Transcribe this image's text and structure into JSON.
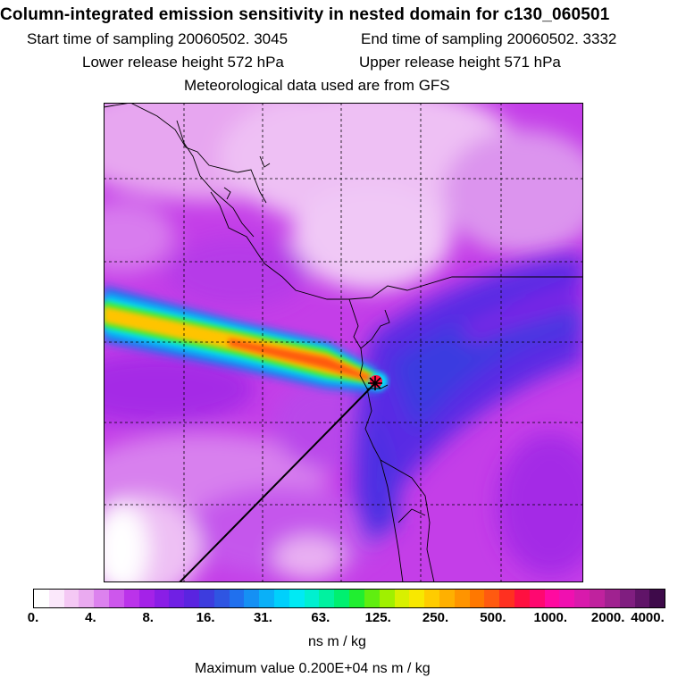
{
  "header": {
    "title": "Column-integrated emission sensitivity in nested domain for c130_060501",
    "start_time": "Start time of sampling 20060502.  3045",
    "end_time": "End time of sampling 20060502.  3332",
    "lower_height": "Lower release height  572 hPa",
    "upper_height": "Upper release height  571 hPa",
    "met_data": "Meteorological data used are from GFS"
  },
  "colorbar": {
    "ticks": [
      "0.",
      "4.",
      "8.",
      "16.",
      "31.",
      "63.",
      "125.",
      "250.",
      "500.",
      "1000.",
      "2000.",
      "4000."
    ],
    "colors": [
      "#ffffff",
      "#fbe8fb",
      "#f4c8f4",
      "#eaaaf0",
      "#dc82ee",
      "#cd57ec",
      "#bb33ea",
      "#a422e8",
      "#8a1ee6",
      "#7020e4",
      "#5a24e0",
      "#3d3cde",
      "#2f55e2",
      "#2070ee",
      "#1590f4",
      "#0ab0f8",
      "#00d0fc",
      "#00eaf4",
      "#00f0d0",
      "#00f2a0",
      "#00f070",
      "#20ee30",
      "#60ee10",
      "#a0f000",
      "#d8f000",
      "#f8e800",
      "#ffcc00",
      "#ffb000",
      "#ff9400",
      "#ff7800",
      "#ff5a10",
      "#ff3020",
      "#ff1040",
      "#ff0870",
      "#ff0aa0",
      "#f010b0",
      "#d81aac",
      "#c0229e",
      "#a02290",
      "#801e80",
      "#601468",
      "#3e0a4a"
    ],
    "units": "ns m / kg",
    "max_value": "Maximum value  0.200E+04 ns m / kg"
  },
  "map": {
    "receptor_marker": "receptor",
    "grid_lon_lines": 5,
    "grid_lat_lines": 5
  }
}
